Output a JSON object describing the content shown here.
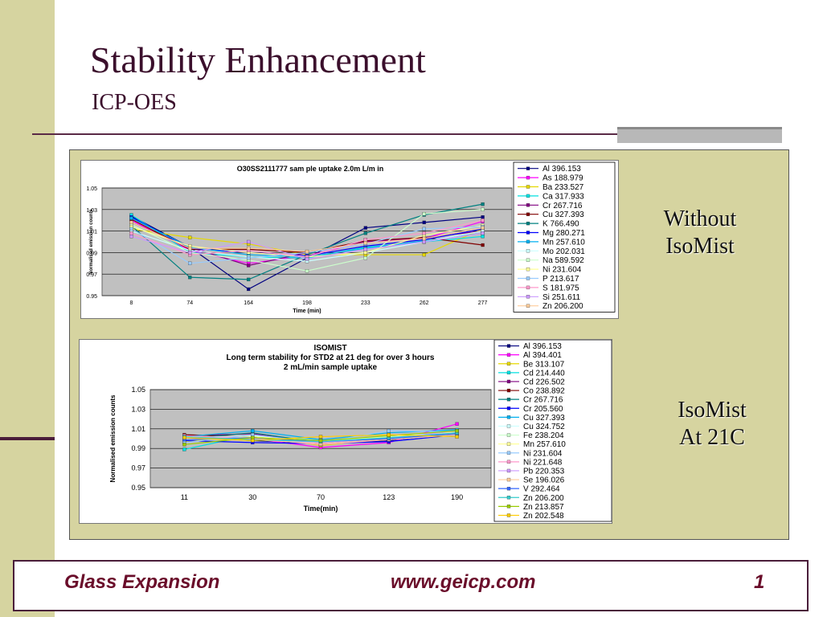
{
  "slide": {
    "title": "Stability Enhancement",
    "subtitle": "ICP-OES",
    "label_top": [
      "Without",
      "IsoMist"
    ],
    "label_bottom": [
      "IsoMist",
      "At 21C"
    ],
    "colors": {
      "title": "#3b0f2c",
      "strip": "#d6d4a0",
      "accent": "#4a1d3a",
      "footer_text": "#6a0d2a"
    }
  },
  "footer": {
    "company": "Glass Expansion",
    "url": "www.geicp.com",
    "page": "1"
  },
  "chart_data": [
    {
      "type": "line",
      "title": "O30SS2111777 sam ple uptake 2.0m L/m in",
      "xlabel": "Time (min)",
      "ylabel": "Normalised emission counts",
      "categories": [
        "8",
        "74",
        "164",
        "198",
        "233",
        "262",
        "277"
      ],
      "ylim": [
        0.95,
        1.05
      ],
      "yticks": [
        "0.95",
        "0.97",
        "0.99",
        "1.01",
        "1.03",
        "1.05"
      ],
      "grid": true,
      "legend": "right",
      "series": [
        {
          "name": "Al 396.153",
          "color": "#000080",
          "values": [
            1.024,
            0.995,
            0.956,
            0.985,
            1.013,
            1.018,
            1.023
          ]
        },
        {
          "name": "As 188.979",
          "color": "#ff00ff",
          "values": [
            1.02,
            0.992,
            0.98,
            0.987,
            1.0,
            1.003,
            1.019
          ]
        },
        {
          "name": "Ba 233.527",
          "color": "#e6d800",
          "values": [
            1.012,
            1.004,
            0.998,
            0.988,
            0.988,
            0.988,
            1.012
          ]
        },
        {
          "name": "Ca 317.933",
          "color": "#00e0e0",
          "values": [
            1.025,
            0.99,
            0.986,
            0.985,
            0.995,
            1.0,
            1.005
          ]
        },
        {
          "name": "Cr 267.716",
          "color": "#800080",
          "values": [
            1.018,
            0.995,
            0.978,
            0.99,
            1.0,
            1.004,
            1.01
          ]
        },
        {
          "name": "Cu 327.393",
          "color": "#800000",
          "values": [
            1.021,
            0.993,
            0.993,
            0.99,
            1.001,
            1.004,
            0.997
          ]
        },
        {
          "name": "K 766.490",
          "color": "#008080",
          "values": [
            1.015,
            0.967,
            0.965,
            0.988,
            1.008,
            1.025,
            1.035
          ]
        },
        {
          "name": "Mg 280.271",
          "color": "#0000ff",
          "values": [
            1.023,
            0.994,
            0.99,
            0.987,
            0.996,
            1.002,
            1.012
          ]
        },
        {
          "name": "Mn 257.610",
          "color": "#00b0f0",
          "values": [
            1.022,
            0.995,
            0.988,
            0.986,
            0.994,
            1.001,
            1.008
          ]
        },
        {
          "name": "Mo 202.031",
          "color": "#ccffff",
          "values": [
            1.01,
            0.992,
            0.986,
            0.982,
            0.99,
            1.0,
            1.01
          ]
        },
        {
          "name": "Na 589.592",
          "color": "#ccffcc",
          "values": [
            1.016,
            0.99,
            0.983,
            0.973,
            0.985,
            1.026,
            1.03
          ]
        },
        {
          "name": "Ni 231.604",
          "color": "#ffff99",
          "values": [
            1.014,
            0.996,
            0.99,
            0.986,
            0.99,
            1.006,
            1.015
          ]
        },
        {
          "name": "P 213.617",
          "color": "#99ccff",
          "values": [
            1.012,
            0.98,
            0.985,
            0.99,
            0.998,
            1.012,
            1.014
          ]
        },
        {
          "name": "S 181.975",
          "color": "#ff99cc",
          "values": [
            1.008,
            0.988,
            0.992,
            0.986,
            1.002,
            1.008,
            1.02
          ]
        },
        {
          "name": "Si 251.611",
          "color": "#cc99ff",
          "values": [
            1.005,
            0.99,
            1.0,
            0.984,
            0.993,
            1.0,
            1.008
          ]
        },
        {
          "name": "Zn 206.200",
          "color": "#ffcc99",
          "values": [
            1.018,
            0.994,
            0.994,
            0.991,
            0.999,
            1.003,
            1.013
          ]
        }
      ]
    },
    {
      "type": "line",
      "title": "ISOMIST",
      "subtitle": "Long term stability for STD2 at 21 deg for over 3 hours",
      "subtitle2": "2 mL/min sample uptake",
      "xlabel": "Time(min)",
      "ylabel": "Normalised emission counts",
      "categories": [
        "11",
        "30",
        "70",
        "123",
        "190"
      ],
      "ylim": [
        0.95,
        1.05
      ],
      "yticks": [
        "0.95",
        "0.97",
        "0.99",
        "1.01",
        "1.03",
        "1.05"
      ],
      "grid": true,
      "legend": "right",
      "series": [
        {
          "name": "Al 396.153",
          "color": "#000080",
          "values": [
            1.002,
            0.998,
            0.995,
            0.998,
            1.006
          ]
        },
        {
          "name": "Al 394.401",
          "color": "#ff00ff",
          "values": [
            1.001,
            1.0,
            0.991,
            0.996,
            1.015
          ]
        },
        {
          "name": "Be 313.107",
          "color": "#e6d800",
          "values": [
            0.997,
            1.003,
            0.993,
            1.0,
            1.004
          ]
        },
        {
          "name": "Cd 214.440",
          "color": "#00e0e0",
          "values": [
            0.989,
            1.004,
            0.998,
            1.001,
            1.007
          ]
        },
        {
          "name": "Cd 226.502",
          "color": "#800080",
          "values": [
            1.003,
            1.005,
            0.995,
            1.001,
            1.005
          ]
        },
        {
          "name": "Co 238.892",
          "color": "#800000",
          "values": [
            1.004,
            1.002,
            0.997,
            0.999,
            1.008
          ]
        },
        {
          "name": "Cr 267.716",
          "color": "#008080",
          "values": [
            1.0,
            1.006,
            0.996,
            1.002,
            1.006
          ]
        },
        {
          "name": "Cr 205.560",
          "color": "#0000ff",
          "values": [
            0.998,
            0.996,
            0.995,
            0.997,
            1.004
          ]
        },
        {
          "name": "Cu 327.393",
          "color": "#00b0f0",
          "values": [
            1.002,
            1.008,
            0.999,
            1.006,
            1.009
          ]
        },
        {
          "name": "Cu 324.752",
          "color": "#ccffff",
          "values": [
            1.001,
            1.003,
            0.996,
            1.003,
            1.006
          ]
        },
        {
          "name": "Fe 238.204",
          "color": "#ccffcc",
          "values": [
            0.999,
            1.001,
            0.997,
            1.002,
            1.005
          ]
        },
        {
          "name": "Mn 257.610",
          "color": "#ffff99",
          "values": [
            1.0,
            1.002,
            0.998,
            1.001,
            1.007
          ]
        },
        {
          "name": "Ni 231.604",
          "color": "#99ccff",
          "values": [
            0.996,
            1.004,
            0.996,
            1.008,
            1.007
          ]
        },
        {
          "name": "Ni 221.648",
          "color": "#ff99cc",
          "values": [
            1.003,
            1.0,
            0.994,
            0.999,
            1.006
          ]
        },
        {
          "name": "Pb 220.353",
          "color": "#cc99ff",
          "values": [
            1.001,
            0.999,
            0.996,
            1.0,
            1.008
          ]
        },
        {
          "name": "Se 196.026",
          "color": "#ffcc99",
          "values": [
            1.0,
            0.999,
            0.995,
            0.999,
            1.004
          ]
        },
        {
          "name": "V 292.464",
          "color": "#3366ff",
          "values": [
            0.999,
            1.001,
            0.997,
            1.0,
            1.005
          ]
        },
        {
          "name": "Zn 206.200",
          "color": "#33cccc",
          "values": [
            1.002,
            0.999,
            0.997,
            1.001,
            1.006
          ]
        },
        {
          "name": "Zn 213.857",
          "color": "#99cc00",
          "values": [
            0.994,
            1.001,
            0.998,
            1.003,
            1.008
          ]
        },
        {
          "name": "Zn 202.548",
          "color": "#ffcc00",
          "values": [
            1.001,
            0.998,
            1.002,
            1.004,
            1.002
          ]
        }
      ]
    }
  ]
}
